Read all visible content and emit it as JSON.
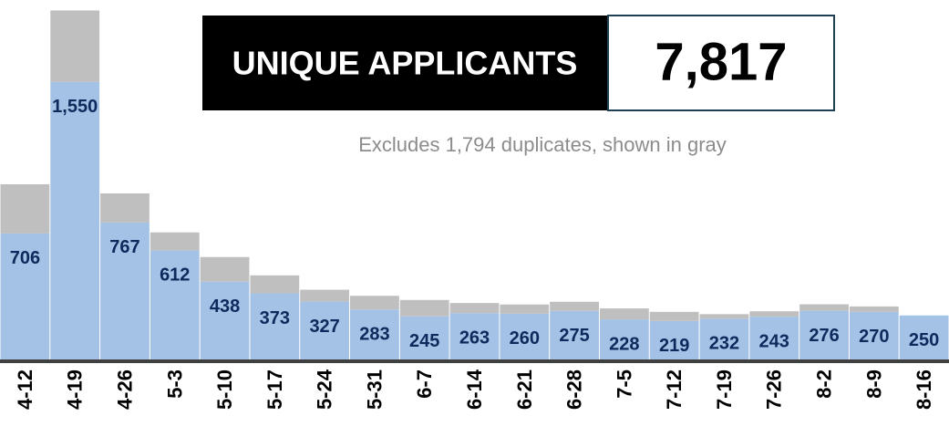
{
  "chart_data": {
    "type": "stacked_bar",
    "title": "UNIQUE APPLICANTS",
    "total": "7,817",
    "subtitle": "Excludes 1,794 duplicates, shown in gray",
    "categories": [
      "4-12",
      "4-19",
      "4-26",
      "5-3",
      "5-10",
      "5-17",
      "5-24",
      "5-31",
      "6-7",
      "6-14",
      "6-21",
      "6-28",
      "7-5",
      "7-12",
      "7-19",
      "7-26",
      "8-2",
      "8-9",
      "8-16"
    ],
    "series": [
      {
        "color": "#a4c2e6",
        "values": [
          706,
          1550,
          767,
          612,
          438,
          373,
          327,
          283,
          245,
          263,
          260,
          275,
          228,
          219,
          232,
          243,
          276,
          270,
          250
        ],
        "value_labels": [
          "706",
          "1,550",
          "767",
          "612",
          "438",
          "373",
          "327",
          "283",
          "245",
          "263",
          "260",
          "275",
          "228",
          "219",
          "232",
          "243",
          "276",
          "270",
          "250"
        ]
      },
      {
        "color": "#bfbfbf",
        "values": [
          274,
          397,
          162,
          100,
          137,
          100,
          66,
          76,
          91,
          56,
          51,
          51,
          61,
          51,
          25,
          30,
          36,
          30,
          0
        ]
      }
    ],
    "ylim": [
      0,
      2000
    ]
  }
}
